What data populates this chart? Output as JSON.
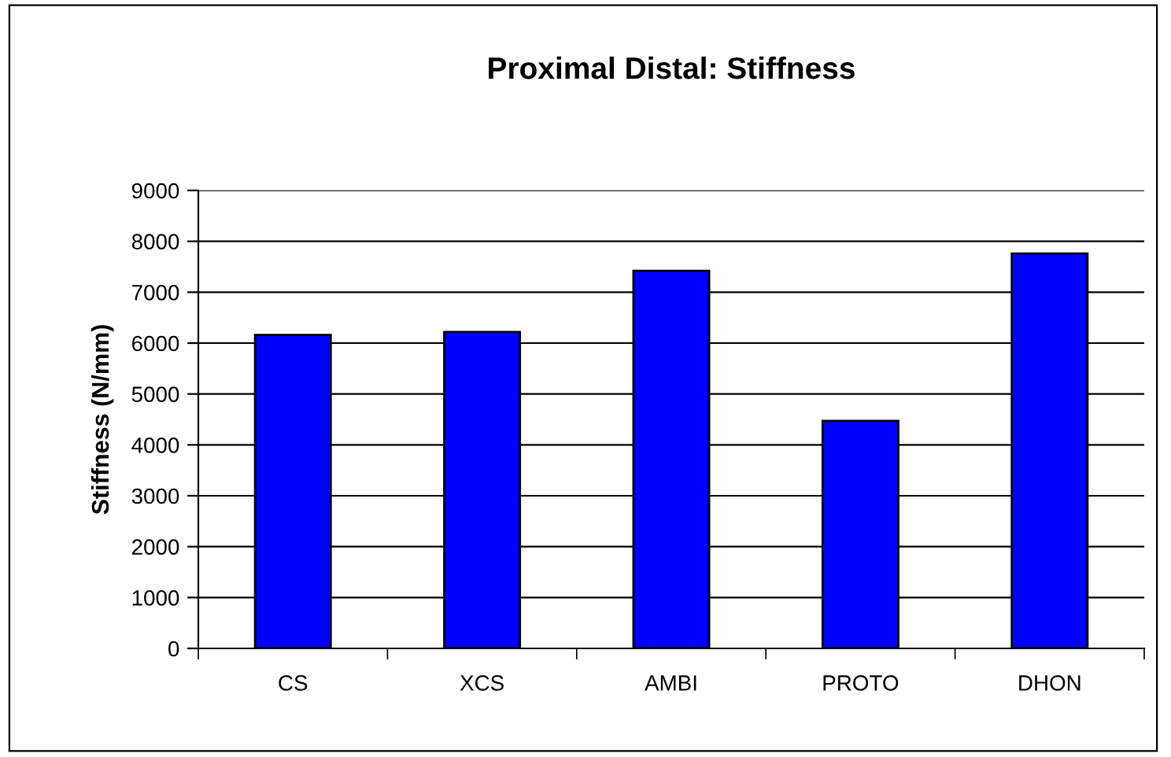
{
  "chart_data": {
    "type": "bar",
    "title": "Proximal Distal: Stiffness",
    "ylabel": "Stiffness (N/mm)",
    "categories": [
      "CS",
      "XCS",
      "AMBI",
      "PROTO",
      "DHON"
    ],
    "values": [
      6160,
      6220,
      7420,
      4470,
      7760
    ],
    "color": "#0000ff",
    "ylim": [
      0,
      9000
    ],
    "yticks": [
      0,
      1000,
      2000,
      3000,
      4000,
      5000,
      6000,
      7000,
      8000,
      9000
    ],
    "grid": "y",
    "legend": false
  }
}
